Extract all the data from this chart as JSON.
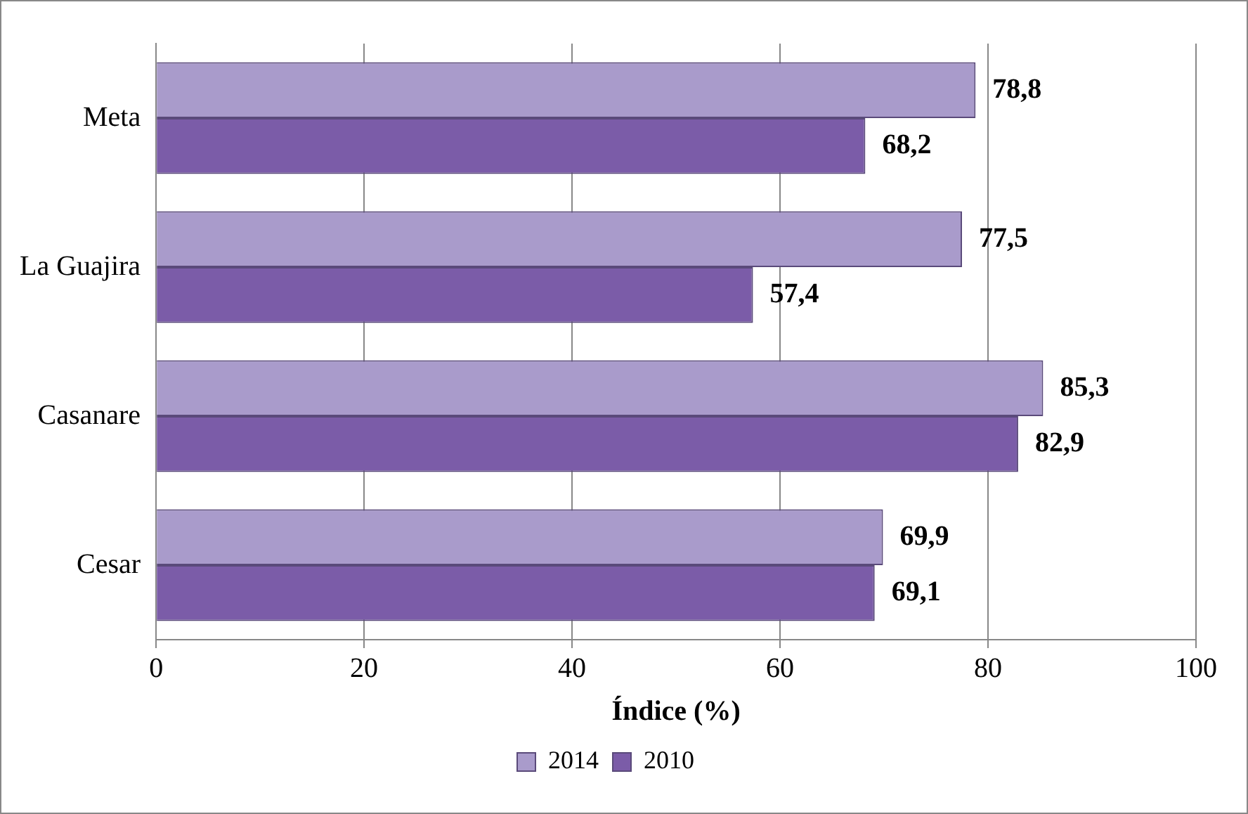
{
  "chart_data": {
    "type": "bar",
    "orientation": "horizontal",
    "xlabel": "Índice (%)",
    "categories": [
      "Meta",
      "La Guajira",
      "Casanare",
      "Cesar"
    ],
    "series": [
      {
        "name": "2014",
        "color": "#a99bcb",
        "values": [
          78.8,
          77.5,
          85.3,
          69.9
        ],
        "value_labels": [
          "78,8",
          "77,5",
          "85,3",
          "69,9"
        ]
      },
      {
        "name": "2010",
        "color": "#7b5ca8",
        "values": [
          68.2,
          57.4,
          82.9,
          69.1
        ],
        "value_labels": [
          "68,2",
          "57,4",
          "82,9",
          "69,1"
        ]
      }
    ],
    "xlim": [
      0,
      100
    ],
    "xticks": [
      0,
      20,
      40,
      60,
      80,
      100
    ],
    "grid": "x",
    "legend": "bottom"
  }
}
